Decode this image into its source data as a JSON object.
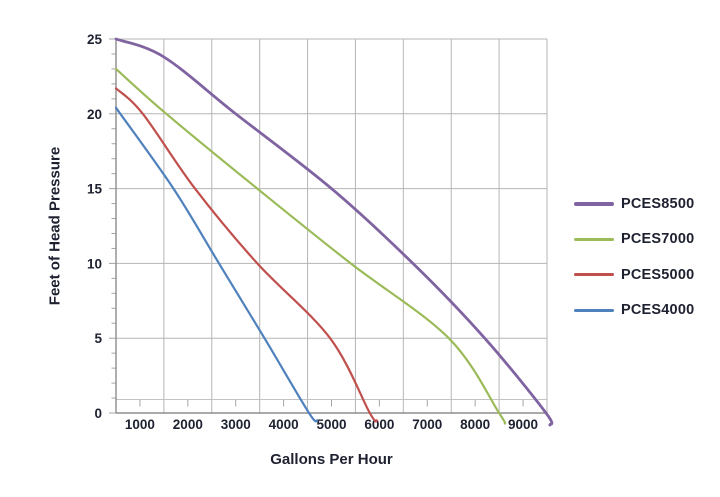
{
  "chart_data": {
    "type": "line",
    "title": "",
    "xlabel": "Gallons Per Hour",
    "ylabel": "Feet of Head Pressure",
    "xlim": [
      500,
      9500
    ],
    "ylim": [
      0,
      25
    ],
    "x_grid_step": 1000,
    "y_grid_step": 5,
    "x_tick_labels": [
      1000,
      2000,
      3000,
      4000,
      5000,
      6000,
      7000,
      8000,
      9000
    ],
    "y_tick_labels": [
      0,
      5,
      10,
      15,
      20,
      25
    ],
    "grid": true,
    "legend_position": "right",
    "colors": {
      "grid": "#b5b5b5",
      "axis": "#8d8d8d",
      "text": "#1e2130"
    },
    "series": [
      {
        "name": "PCES8500",
        "color": "#8064A2",
        "stroke_width": 2.8,
        "points": [
          [
            500,
            25
          ],
          [
            1500,
            23.8
          ],
          [
            3000,
            20
          ],
          [
            5000,
            15
          ],
          [
            6700,
            10
          ],
          [
            8200,
            5
          ],
          [
            9480,
            0
          ],
          [
            9560,
            -0.8
          ]
        ]
      },
      {
        "name": "PCES7000",
        "color": "#9BBB59",
        "stroke_width": 2.2,
        "points": [
          [
            500,
            23
          ],
          [
            1550,
            20
          ],
          [
            3450,
            15
          ],
          [
            5400,
            10
          ],
          [
            7450,
            5
          ],
          [
            8500,
            0
          ],
          [
            8620,
            -0.7
          ]
        ]
      },
      {
        "name": "PCES5000",
        "color": "#C0504D",
        "stroke_width": 2.2,
        "points": [
          [
            500,
            21.7
          ],
          [
            1060,
            20
          ],
          [
            2150,
            15
          ],
          [
            3450,
            10
          ],
          [
            4970,
            5
          ],
          [
            5800,
            0
          ],
          [
            5950,
            -0.5
          ]
        ]
      },
      {
        "name": "PCES4000",
        "color": "#4F81BD",
        "stroke_width": 2.2,
        "points": [
          [
            500,
            20.4
          ],
          [
            1700,
            15
          ],
          [
            2650,
            10
          ],
          [
            3600,
            5
          ],
          [
            4530,
            0
          ],
          [
            4700,
            -0.5
          ]
        ]
      }
    ]
  }
}
